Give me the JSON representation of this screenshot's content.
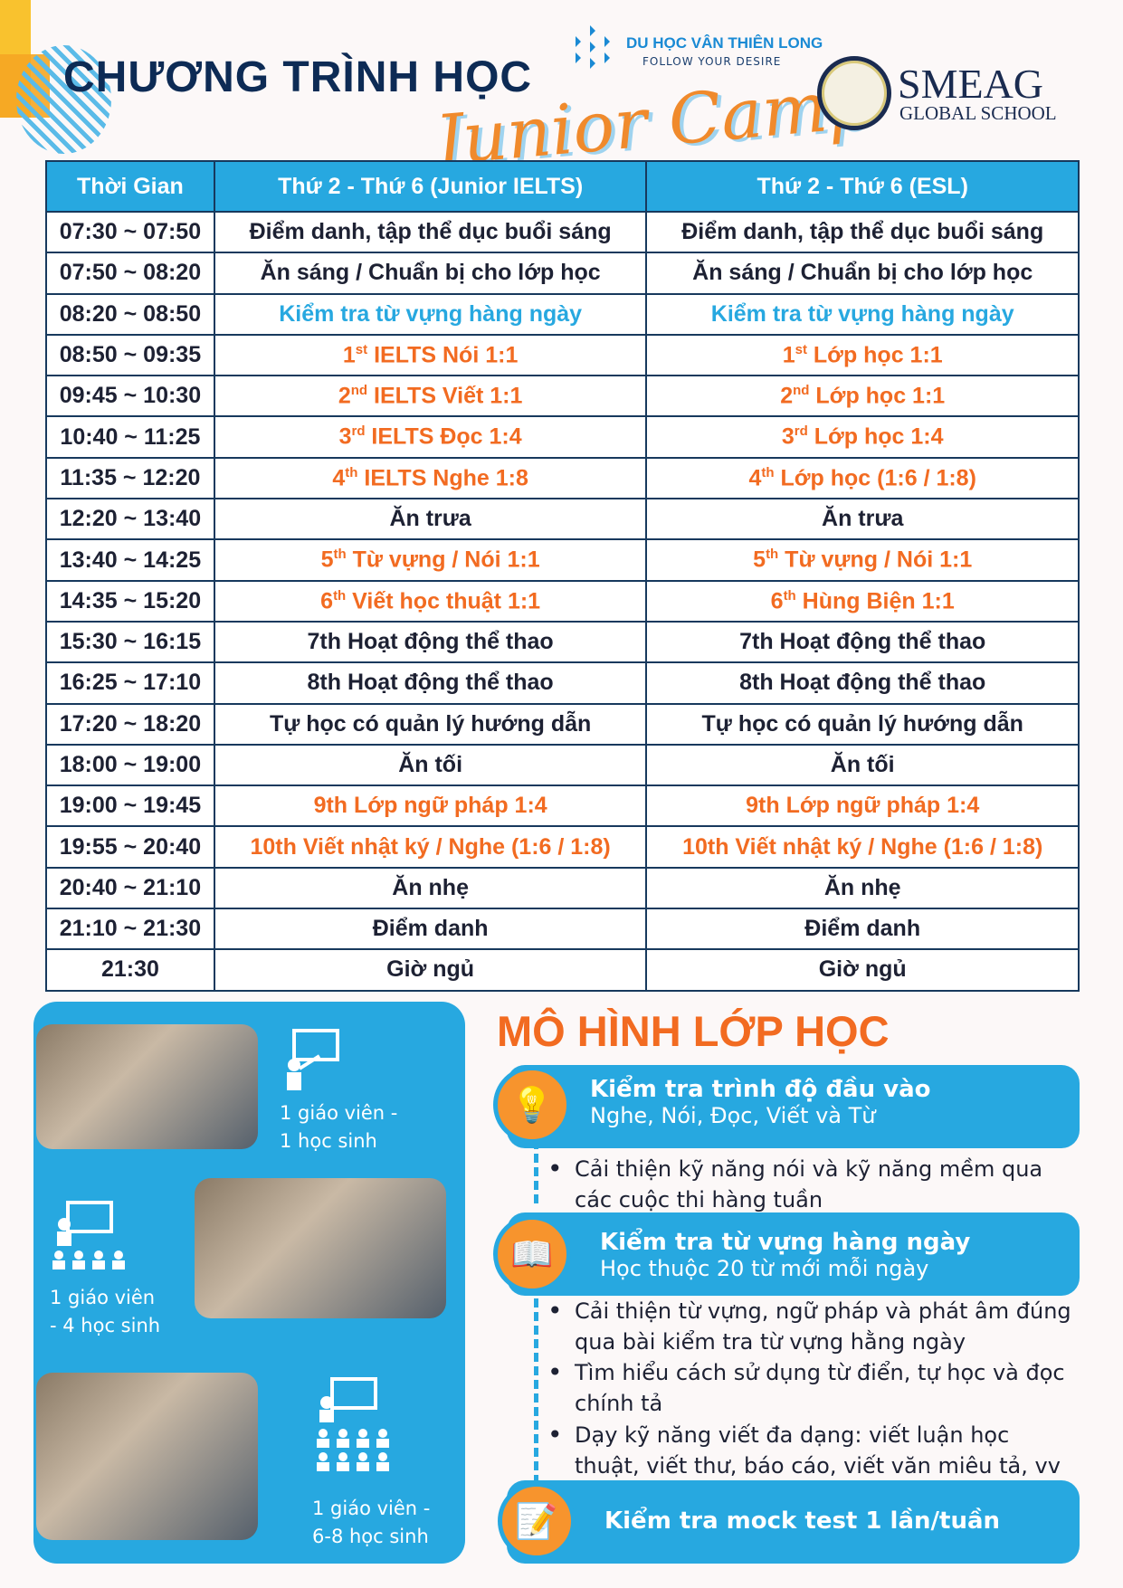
{
  "header": {
    "title": "CHƯƠNG TRÌNH HỌC",
    "subtitle": "Junior Camp",
    "partner_name": "DU HỌC VÂN THIÊN LONG",
    "partner_tagline": "FOLLOW YOUR DESIRE",
    "school_name": "SMEAG",
    "school_sub": "GLOBAL SCHOOL"
  },
  "table": {
    "headers": [
      "Thời Gian",
      "Thứ 2 - Thứ 6  (Junior IELTS)",
      "Thứ 2 - Thứ 6 (ESL)"
    ],
    "rows": [
      {
        "time": "07:30 ~ 07:50",
        "ielts": "Điểm danh, tập thể dục buổi sáng",
        "esl": "Điểm danh, tập thể dục buổi sáng",
        "color": "dark"
      },
      {
        "time": "07:50 ~ 08:20",
        "ielts": "Ăn sáng / Chuẩn bị cho lớp học",
        "esl": "Ăn sáng / Chuẩn bị cho lớp học",
        "color": "dark"
      },
      {
        "time": "08:20 ~ 08:50",
        "ielts": "Kiểm tra từ vựng hàng ngày",
        "esl": "Kiểm tra từ vựng hàng ngày",
        "color": "blue"
      },
      {
        "time": "08:50 ~ 09:35",
        "ord": "1",
        "sup": "st",
        "ielts": " IELTS Nói 1:1",
        "esl": " Lớp học 1:1",
        "color": "orange"
      },
      {
        "time": "09:45 ~ 10:30",
        "ord": "2",
        "sup": "nd",
        "ielts": " IELTS Viết 1:1",
        "esl": " Lớp học 1:1",
        "color": "orange"
      },
      {
        "time": "10:40 ~ 11:25",
        "ord": "3",
        "sup": "rd",
        "ielts": " IELTS Đọc 1:4",
        "esl": " Lớp học 1:4",
        "color": "orange"
      },
      {
        "time": "11:35 ~ 12:20",
        "ord": "4",
        "sup": "th",
        "ielts": " IELTS Nghe 1:8",
        "esl": " Lớp học (1:6 / 1:8)",
        "color": "orange"
      },
      {
        "time": "12:20 ~ 13:40",
        "ielts": "Ăn trưa",
        "esl": "Ăn trưa",
        "color": "dark"
      },
      {
        "time": "13:40 ~ 14:25",
        "ord": "5",
        "sup": "th",
        "ielts": " Từ vựng / Nói 1:1",
        "esl": " Từ vựng / Nói 1:1",
        "color": "orange"
      },
      {
        "time": "14:35 ~ 15:20",
        "ord": "6",
        "sup": "th",
        "ielts": " Viết học thuật 1:1",
        "esl": " Hùng Biện 1:1",
        "color": "orange"
      },
      {
        "time": "15:30 ~ 16:15",
        "ielts": "7th Hoạt động thể thao",
        "esl": "7th Hoạt động thể thao",
        "color": "dark"
      },
      {
        "time": "16:25 ~ 17:10",
        "ielts": "8th Hoạt động thể thao",
        "esl": "8th Hoạt động thể thao",
        "color": "dark"
      },
      {
        "time": "17:20 ~ 18:20",
        "ielts": "Tự học có quản lý hướng dẫn",
        "esl": "Tự học có quản lý hướng dẫn",
        "color": "dark"
      },
      {
        "time": "18:00 ~ 19:00",
        "ielts": "Ăn tối",
        "esl": "Ăn tối",
        "color": "dark"
      },
      {
        "time": "19:00 ~ 19:45",
        "ielts": "9th Lớp ngữ pháp 1:4",
        "esl": "9th Lớp ngữ pháp 1:4",
        "color": "orange"
      },
      {
        "time": "19:55 ~ 20:40",
        "ielts": "10th Viết nhật ký / Nghe (1:6 / 1:8)",
        "esl": "10th Viết nhật ký / Nghe (1:6 / 1:8)",
        "color": "orange"
      },
      {
        "time": "20:40 ~ 21:10",
        "ielts": "Ăn nhẹ",
        "esl": "Ăn nhẹ",
        "color": "dark"
      },
      {
        "time": "21:10 ~ 21:30",
        "ielts": "Điểm danh",
        "esl": "Điểm danh",
        "color": "dark"
      },
      {
        "time": "21:30",
        "ielts": "Giờ ngủ",
        "esl": "Giờ ngủ",
        "color": "dark"
      }
    ]
  },
  "class_types": [
    {
      "line1": "1 giáo viên -",
      "line2": "1 học sinh",
      "icon": "teacher-board-icon"
    },
    {
      "line1": "1 giáo viên",
      "line2": "- 4 học sinh",
      "icon": "teacher-4-students-icon"
    },
    {
      "line1": "1 giáo viên -",
      "line2": "6-8 học sinh",
      "icon": "teacher-8-students-icon"
    }
  ],
  "model": {
    "title": "MÔ HÌNH LỚP HỌC",
    "sections": [
      {
        "heading": "Kiểm tra trình độ đầu vào",
        "sub": "Nghe, Nói, Đọc, Viết và Từ",
        "icon": "lightbulb-book-icon",
        "bullets": [
          "Cải thiện kỹ năng nói và kỹ năng mềm qua các cuộc thi hàng tuần"
        ]
      },
      {
        "heading": "Kiểm tra từ vựng hàng ngày",
        "sub": "Học thuộc 20 từ mới mỗi ngày",
        "icon": "open-book-icon",
        "bullets": [
          "Cải thiện từ vựng, ngữ pháp và phát âm đúng qua bài kiểm tra từ vựng hằng ngày",
          "Tìm hiểu cách sử dụng từ điển, tự học và đọc chính tả",
          "Dạy kỹ năng viết đa dạng: viết luận học thuật, viết thư, báo cáo, viết văn miêu tả, vv"
        ]
      },
      {
        "heading": "Kiểm tra mock test 1 lần/tuần",
        "icon": "test-paper-icon"
      }
    ]
  },
  "colors": {
    "blue": "#27a8e0",
    "orange": "#f26b21",
    "navy": "#0d2b55"
  }
}
